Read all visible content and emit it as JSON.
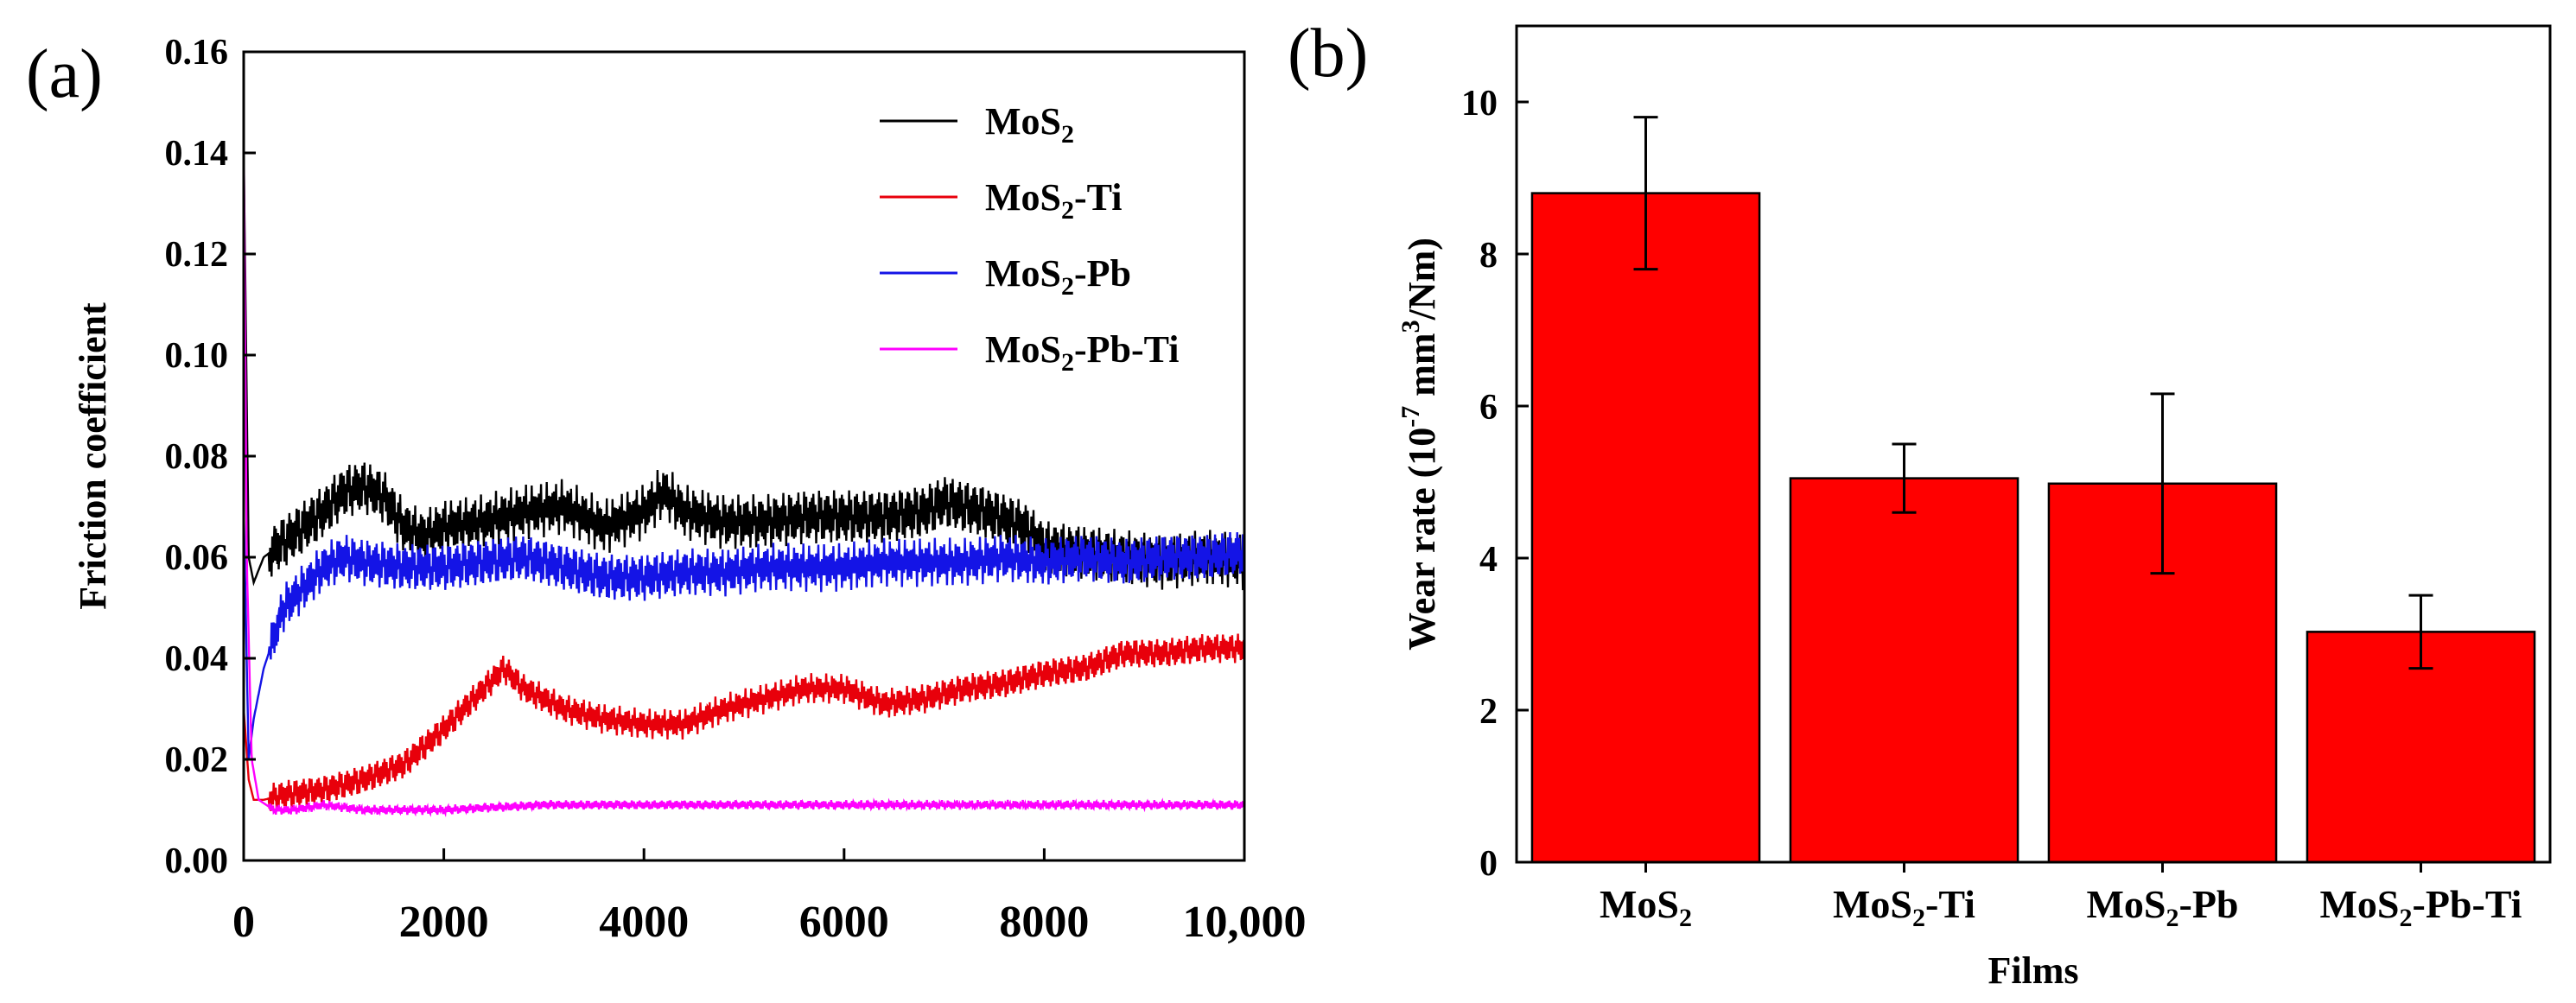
{
  "chart_data": [
    {
      "panel": "(a)",
      "type": "line",
      "title": "",
      "xlabel": "",
      "ylabel": "Friction coefficient",
      "xlim": [
        0,
        10000
      ],
      "ylim": [
        0,
        0.16
      ],
      "xticks": [
        0,
        2000,
        4000,
        6000,
        8000,
        10000
      ],
      "xtick_labels": [
        "0",
        "2000",
        "4000",
        "6000",
        "8000",
        "10,000"
      ],
      "yticks": [
        "0.00",
        "0.02",
        "0.04",
        "0.06",
        "0.08",
        "0.10",
        "0.12",
        "0.14",
        "0.16"
      ],
      "grid": false,
      "legend_position": "top-right",
      "series": [
        {
          "name": "MoS2",
          "name_sub": {
            "main": "MoS",
            "sub": "2",
            "rest": ""
          },
          "color": "#000000",
          "noise": 0.004,
          "x": [
            0,
            50,
            100,
            200,
            400,
            600,
            800,
            1000,
            1200,
            1400,
            1600,
            1800,
            2000,
            2400,
            2800,
            3200,
            3600,
            4000,
            4200,
            4400,
            4800,
            5200,
            5600,
            6000,
            6400,
            6800,
            7000,
            7400,
            7800,
            8000,
            8400,
            8800,
            9200,
            9600,
            10000
          ],
          "y": [
            0.14,
            0.06,
            0.055,
            0.06,
            0.063,
            0.066,
            0.069,
            0.073,
            0.074,
            0.072,
            0.066,
            0.064,
            0.066,
            0.067,
            0.069,
            0.07,
            0.066,
            0.069,
            0.073,
            0.069,
            0.067,
            0.067,
            0.068,
            0.068,
            0.068,
            0.069,
            0.071,
            0.069,
            0.066,
            0.062,
            0.061,
            0.06,
            0.059,
            0.06,
            0.059
          ]
        },
        {
          "name": "MoS2-Ti",
          "name_sub": {
            "main": "MoS",
            "sub": "2",
            "rest": "-Ti"
          },
          "color": "#e8000b",
          "noise": 0.0022,
          "x": [
            0,
            50,
            100,
            200,
            400,
            800,
            1200,
            1600,
            2000,
            2400,
            2600,
            2800,
            3200,
            3600,
            4000,
            4400,
            4800,
            5200,
            5600,
            6000,
            6400,
            6800,
            7200,
            7600,
            8000,
            8400,
            8800,
            9200,
            9600,
            10000
          ],
          "y": [
            0.03,
            0.016,
            0.012,
            0.012,
            0.013,
            0.014,
            0.016,
            0.019,
            0.026,
            0.034,
            0.038,
            0.034,
            0.03,
            0.028,
            0.027,
            0.027,
            0.03,
            0.032,
            0.034,
            0.034,
            0.031,
            0.032,
            0.034,
            0.035,
            0.037,
            0.038,
            0.041,
            0.041,
            0.042,
            0.042
          ]
        },
        {
          "name": "MoS2-Pb",
          "name_sub": {
            "main": "MoS",
            "sub": "2",
            "rest": "-Pb"
          },
          "color": "#1414e6",
          "noise": 0.0035,
          "x": [
            0,
            50,
            100,
            200,
            400,
            600,
            800,
            1000,
            1200,
            1600,
            2000,
            2400,
            2800,
            3200,
            3600,
            4000,
            4400,
            4800,
            5200,
            5600,
            6000,
            6400,
            6800,
            7200,
            7600,
            8000,
            8400,
            8800,
            9200,
            9600,
            10000
          ],
          "y": [
            0.07,
            0.02,
            0.028,
            0.038,
            0.05,
            0.054,
            0.058,
            0.06,
            0.059,
            0.058,
            0.058,
            0.059,
            0.06,
            0.058,
            0.056,
            0.056,
            0.057,
            0.057,
            0.058,
            0.058,
            0.058,
            0.059,
            0.059,
            0.059,
            0.06,
            0.059,
            0.06,
            0.059,
            0.06,
            0.06,
            0.061
          ]
        },
        {
          "name": "MoS2-Pb-Ti",
          "name_sub": {
            "main": "MoS",
            "sub": "2",
            "rest": "-Pb-Ti"
          },
          "color": "#ff00ff",
          "noise": 0.0007,
          "x": [
            0,
            30,
            80,
            150,
            300,
            500,
            800,
            1200,
            2000,
            3000,
            4000,
            5000,
            6000,
            7000,
            8000,
            9000,
            10000
          ],
          "y": [
            0.145,
            0.06,
            0.02,
            0.012,
            0.01,
            0.01,
            0.011,
            0.01,
            0.01,
            0.011,
            0.011,
            0.011,
            0.011,
            0.011,
            0.011,
            0.011,
            0.011
          ]
        }
      ]
    },
    {
      "panel": "(b)",
      "type": "bar",
      "title": "",
      "xlabel": "Films",
      "ylabel": "Wear rate (10⁻⁷ mm³/Nm)",
      "ylabel_parts": {
        "a": "Wear rate (10",
        "b": "-7",
        "c": " mm",
        "d": "3",
        "e": "/Nm)"
      },
      "ylim": [
        0,
        11
      ],
      "yticks": [
        "0",
        "2",
        "4",
        "6",
        "8",
        "10"
      ],
      "bar_color": "#ff0000",
      "grid": false,
      "categories": [
        "MoS2",
        "MoS2-Ti",
        "MoS2-Pb",
        "MoS2-Pb-Ti"
      ],
      "category_labels": [
        {
          "main": "MoS",
          "sub": "2",
          "rest": ""
        },
        {
          "main": "MoS",
          "sub": "2",
          "rest": "-Ti"
        },
        {
          "main": "MoS",
          "sub": "2",
          "rest": "-Pb"
        },
        {
          "main": "MoS",
          "sub": "2",
          "rest": "-Pb-Ti"
        }
      ],
      "values": [
        8.8,
        5.05,
        4.98,
        3.03
      ],
      "errors": [
        1.0,
        0.45,
        1.18,
        0.48
      ]
    }
  ]
}
